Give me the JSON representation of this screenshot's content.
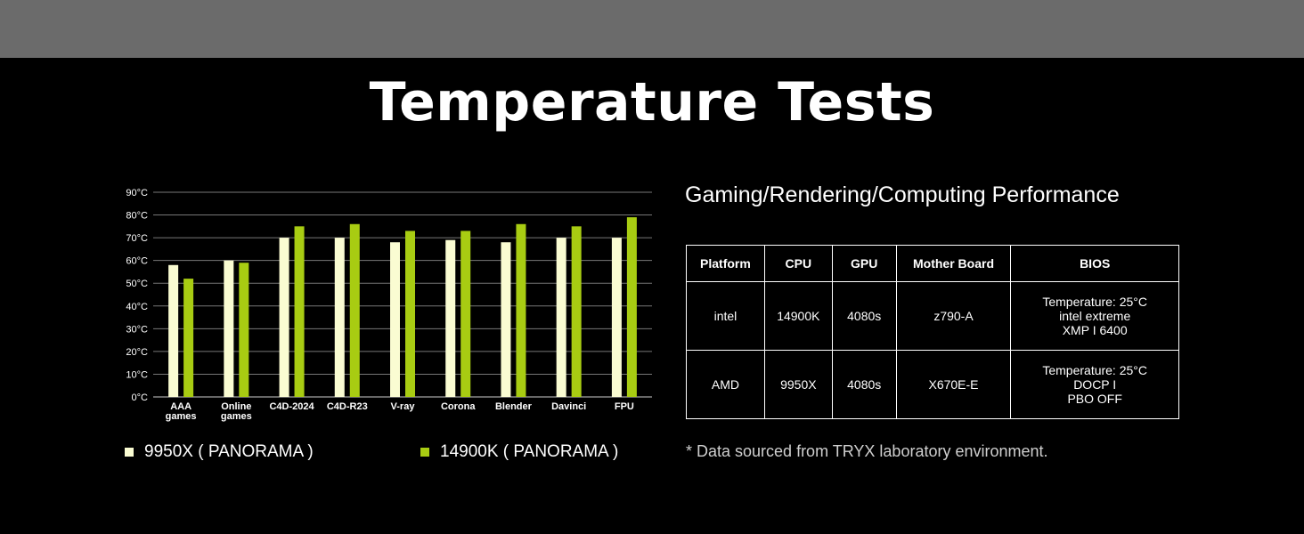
{
  "page_title": "Temperature Tests",
  "colors": {
    "series_9950x": "#fafcd2",
    "series_14900k": "#a8cc12",
    "grid": "#777777"
  },
  "chart_data": {
    "type": "bar",
    "categories": [
      [
        "AAA",
        "games"
      ],
      [
        "Online",
        "games"
      ],
      [
        "C4D-2024"
      ],
      [
        "C4D-R23"
      ],
      [
        "V-ray"
      ],
      [
        "Corona"
      ],
      [
        "Blender"
      ],
      [
        "Davinci"
      ],
      [
        "FPU"
      ]
    ],
    "series": [
      {
        "name": "9950X ( PANORAMA )",
        "values": [
          58,
          60,
          70,
          70,
          68,
          69,
          68,
          70,
          70
        ]
      },
      {
        "name": "14900K ( PANORAMA )",
        "values": [
          52,
          59,
          75,
          76,
          73,
          73,
          76,
          75,
          79
        ]
      }
    ],
    "yticks": [
      "0°C",
      "10°C",
      "20°C",
      "30°C",
      "40°C",
      "50°C",
      "60°C",
      "70°C",
      "80°C",
      "90°C"
    ],
    "ylim": [
      0,
      90
    ],
    "grid": true,
    "legend_position": "bottom"
  },
  "legend": {
    "item1": "9950X ( PANORAMA )",
    "item2": "14900K ( PANORAMA )"
  },
  "spec": {
    "subtitle": "Gaming/Rendering/Computing Performance",
    "headers": {
      "platform": "Platform",
      "cpu": "CPU",
      "gpu": "GPU",
      "board": "Mother Board",
      "bios": "BIOS"
    },
    "rows": [
      {
        "platform": "intel",
        "cpu": "14900K",
        "gpu": "4080s",
        "board": "z790-A",
        "bios": [
          "Temperature: 25°C",
          "intel extreme",
          "XMP I 6400"
        ]
      },
      {
        "platform": "AMD",
        "cpu": "9950X",
        "gpu": "4080s",
        "board": "X670E-E",
        "bios": [
          "Temperature: 25°C",
          "DOCP I",
          "PBO OFF"
        ]
      }
    ],
    "footnote": "* Data sourced from TRYX laboratory environment."
  }
}
